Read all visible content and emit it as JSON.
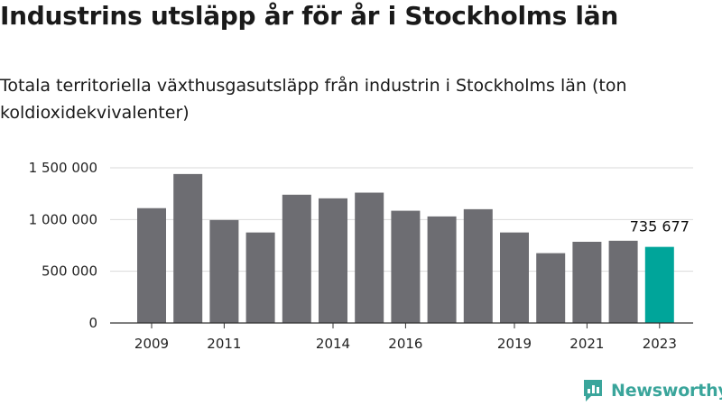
{
  "brand": {
    "name": "Newsworthy",
    "color": "#3aa59b",
    "icon": "newsworthy-logo-icon"
  },
  "colors": {
    "bar": "#6d6d72",
    "highlight": "#00a59a",
    "grid": "#d9d9d9",
    "axis": "#333333"
  },
  "chart_data": {
    "type": "bar",
    "title": "Industrins utsläpp år för år i Stockholms län",
    "subtitle": "Totala territoriella växthusgasutsläpp från industrin i Stockholms län (ton koldioxidekvivalenter)",
    "categories": [
      "2009",
      "2010",
      "2011",
      "2012",
      "2013",
      "2014",
      "2015",
      "2016",
      "2017",
      "2018",
      "2019",
      "2020",
      "2021",
      "2022",
      "2023"
    ],
    "values": [
      1110000,
      1440000,
      995000,
      875000,
      1240000,
      1205000,
      1260000,
      1085000,
      1030000,
      1100000,
      875000,
      675000,
      785000,
      795000,
      735677
    ],
    "x_tick_labels": [
      "2009",
      "2011",
      "2014",
      "2016",
      "2019",
      "2021",
      "2023"
    ],
    "y_ticks": [
      0,
      500000,
      1000000,
      1500000
    ],
    "y_tick_labels": [
      "0",
      "500 000",
      "1 000 000",
      "1 500 000"
    ],
    "ylim": [
      0,
      1500000
    ],
    "grid": true,
    "legend": "none",
    "highlight": {
      "index": 14,
      "label": "735 677"
    },
    "xlabel": "",
    "ylabel": ""
  }
}
